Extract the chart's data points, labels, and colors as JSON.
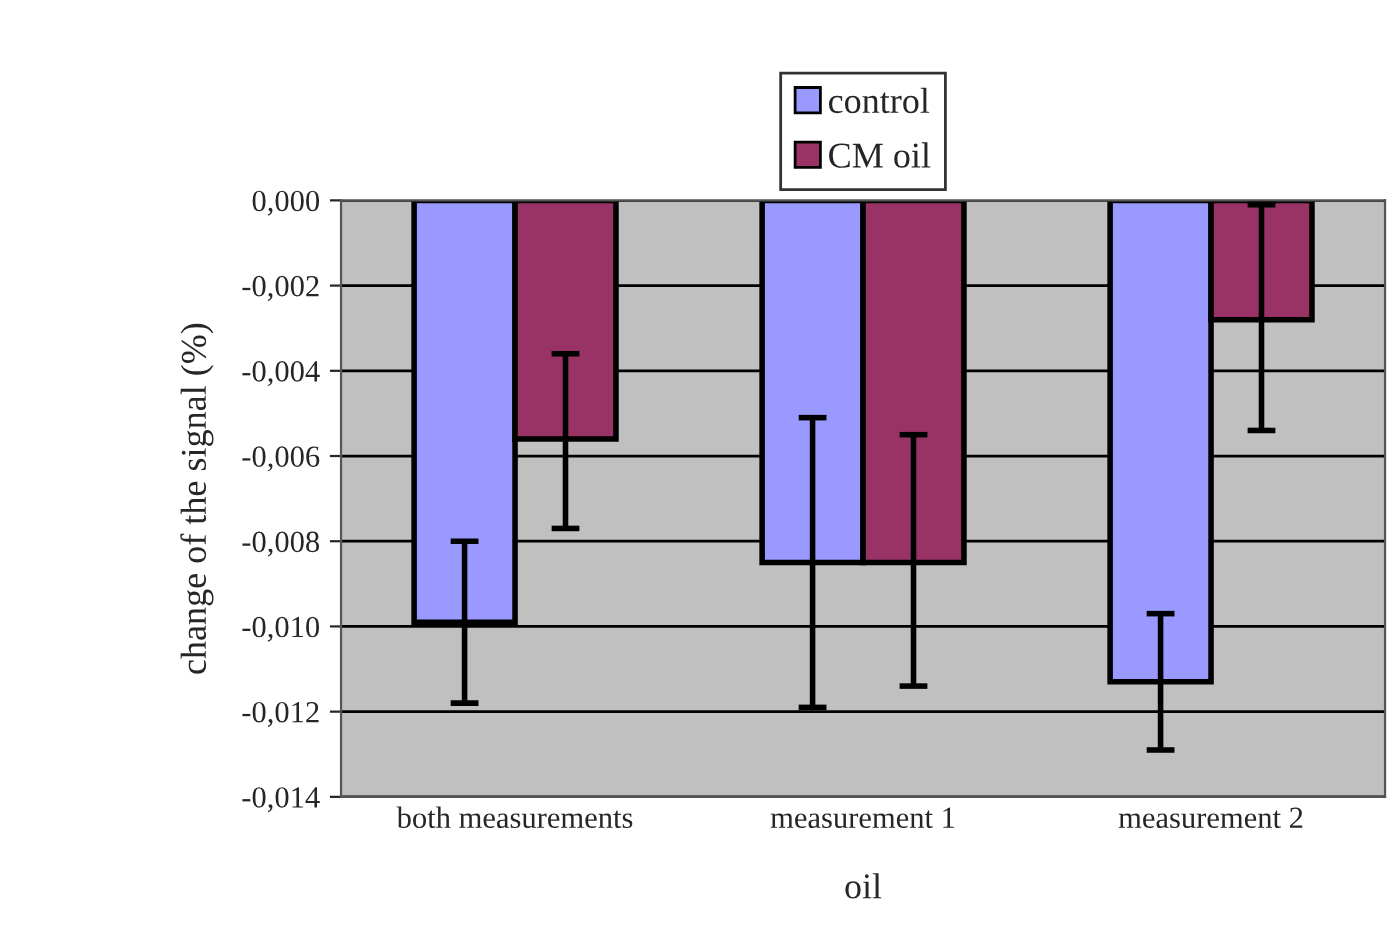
{
  "chart_data": {
    "type": "bar",
    "xlabel": "oil",
    "ylabel": "change of the signal (%)",
    "categories": [
      "both measurements",
      "measurement 1",
      "measurement 2"
    ],
    "series": [
      {
        "name": "control",
        "color": "#9999ff",
        "values": [
          -0.0099,
          -0.0085,
          -0.0113
        ],
        "errors": [
          [
            -0.0118,
            -0.008
          ],
          [
            -0.0119,
            -0.0051
          ],
          [
            -0.0129,
            -0.0097
          ]
        ]
      },
      {
        "name": "CM oil",
        "color": "#993366",
        "values": [
          -0.0056,
          -0.0085,
          -0.0028
        ],
        "errors": [
          [
            -0.0077,
            -0.0036
          ],
          [
            -0.0114,
            -0.0055
          ],
          [
            -0.0054,
            -0.0001
          ]
        ]
      }
    ],
    "ylim": [
      -0.014,
      0
    ],
    "yticks": [
      {
        "value": 0,
        "label": "0,000"
      },
      {
        "value": -0.002,
        "label": "-0,002"
      },
      {
        "value": -0.004,
        "label": "-0,004"
      },
      {
        "value": -0.006,
        "label": "-0,006"
      },
      {
        "value": -0.008,
        "label": "-0,008"
      },
      {
        "value": -0.01,
        "label": "-0,010"
      },
      {
        "value": -0.012,
        "label": "-0,012"
      },
      {
        "value": -0.014,
        "label": "-0,014"
      }
    ],
    "grid": "y",
    "legend": "top"
  }
}
